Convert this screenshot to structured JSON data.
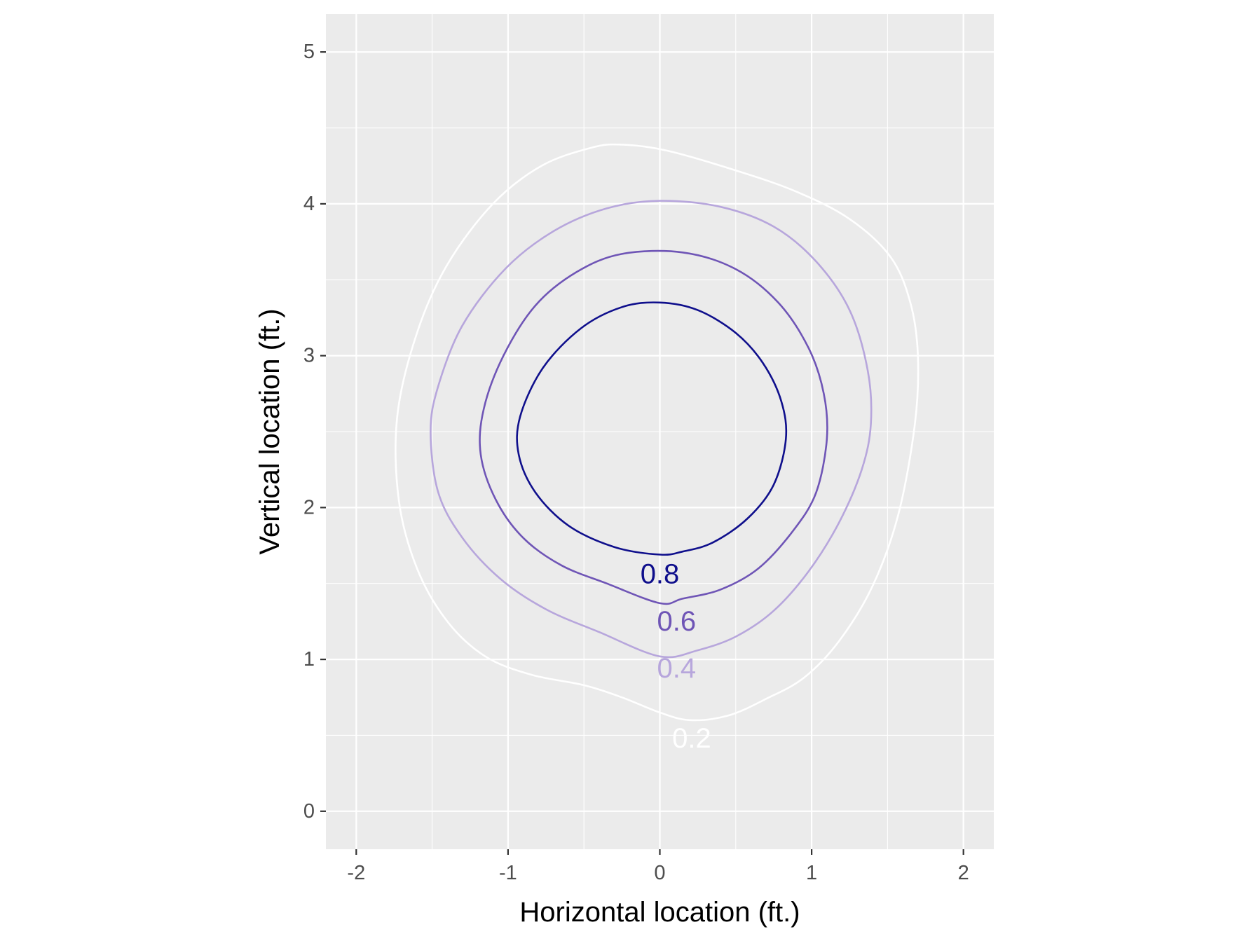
{
  "chart_data": {
    "type": "contour",
    "xlabel": "Horizontal location (ft.)",
    "ylabel": "Vertical location (ft.)",
    "xlim": [
      -2.2,
      2.2
    ],
    "ylim": [
      -0.25,
      5.25
    ],
    "x_ticks": [
      "-2",
      "-1",
      "0",
      "1",
      "2"
    ],
    "y_ticks": [
      "0",
      "1",
      "2",
      "3",
      "4",
      "5"
    ],
    "x_tick_values": [
      -2,
      -1,
      0,
      1,
      2
    ],
    "y_tick_values": [
      0,
      1,
      2,
      3,
      4,
      5
    ],
    "grid": true,
    "aspect": "equal",
    "colors": {
      "panel": "#ebebeb",
      "grid": "#ffffff"
    },
    "contours": [
      {
        "level": "0.2",
        "color": "#ffffff",
        "label_at": [
          0.21,
          0.48
        ],
        "points": [
          [
            0.0,
            0.65
          ],
          [
            0.2,
            0.6
          ],
          [
            0.45,
            0.63
          ],
          [
            0.7,
            0.74
          ],
          [
            0.95,
            0.88
          ],
          [
            1.18,
            1.12
          ],
          [
            1.4,
            1.48
          ],
          [
            1.57,
            1.95
          ],
          [
            1.68,
            2.55
          ],
          [
            1.7,
            3.0
          ],
          [
            1.65,
            3.35
          ],
          [
            1.52,
            3.65
          ],
          [
            1.25,
            3.9
          ],
          [
            0.9,
            4.08
          ],
          [
            0.5,
            4.22
          ],
          [
            0.05,
            4.35
          ],
          [
            -0.25,
            4.39
          ],
          [
            -0.45,
            4.37
          ],
          [
            -0.78,
            4.25
          ],
          [
            -1.1,
            4.0
          ],
          [
            -1.4,
            3.6
          ],
          [
            -1.6,
            3.15
          ],
          [
            -1.73,
            2.6
          ],
          [
            -1.72,
            2.05
          ],
          [
            -1.6,
            1.6
          ],
          [
            -1.4,
            1.25
          ],
          [
            -1.15,
            1.02
          ],
          [
            -0.85,
            0.9
          ],
          [
            -0.5,
            0.83
          ],
          [
            -0.25,
            0.75
          ]
        ]
      },
      {
        "level": "0.4",
        "color": "#b7a6dc",
        "label_at": [
          0.11,
          0.94
        ],
        "points": [
          [
            0.0,
            1.02
          ],
          [
            0.25,
            1.06
          ],
          [
            0.5,
            1.15
          ],
          [
            0.75,
            1.32
          ],
          [
            0.98,
            1.58
          ],
          [
            1.18,
            1.9
          ],
          [
            1.33,
            2.25
          ],
          [
            1.39,
            2.55
          ],
          [
            1.37,
            2.9
          ],
          [
            1.25,
            3.3
          ],
          [
            1.03,
            3.62
          ],
          [
            0.75,
            3.85
          ],
          [
            0.4,
            3.98
          ],
          [
            0.0,
            4.02
          ],
          [
            -0.35,
            3.97
          ],
          [
            -0.7,
            3.82
          ],
          [
            -1.02,
            3.57
          ],
          [
            -1.3,
            3.2
          ],
          [
            -1.46,
            2.8
          ],
          [
            -1.51,
            2.5
          ],
          [
            -1.46,
            2.1
          ],
          [
            -1.3,
            1.8
          ],
          [
            -1.05,
            1.53
          ],
          [
            -0.75,
            1.33
          ],
          [
            -0.4,
            1.18
          ]
        ]
      },
      {
        "level": "0.6",
        "color": "#6f55b6",
        "label_at": [
          0.11,
          1.25
        ],
        "points": [
          [
            0.0,
            1.37
          ],
          [
            0.15,
            1.4
          ],
          [
            0.4,
            1.46
          ],
          [
            0.65,
            1.6
          ],
          [
            0.88,
            1.85
          ],
          [
            1.03,
            2.1
          ],
          [
            1.1,
            2.45
          ],
          [
            1.08,
            2.75
          ],
          [
            0.98,
            3.05
          ],
          [
            0.78,
            3.35
          ],
          [
            0.5,
            3.57
          ],
          [
            0.15,
            3.68
          ],
          [
            -0.25,
            3.67
          ],
          [
            -0.55,
            3.55
          ],
          [
            -0.82,
            3.33
          ],
          [
            -1.03,
            3.0
          ],
          [
            -1.16,
            2.65
          ],
          [
            -1.18,
            2.35
          ],
          [
            -1.08,
            2.05
          ],
          [
            -0.9,
            1.8
          ],
          [
            -0.65,
            1.62
          ],
          [
            -0.35,
            1.5
          ]
        ]
      },
      {
        "level": "0.8",
        "color": "#0f0f8c",
        "label_at": [
          0.0,
          1.56
        ],
        "points": [
          [
            0.0,
            1.69
          ],
          [
            0.15,
            1.71
          ],
          [
            0.35,
            1.77
          ],
          [
            0.58,
            1.93
          ],
          [
            0.75,
            2.15
          ],
          [
            0.83,
            2.45
          ],
          [
            0.8,
            2.7
          ],
          [
            0.68,
            2.95
          ],
          [
            0.5,
            3.15
          ],
          [
            0.25,
            3.3
          ],
          [
            0.0,
            3.35
          ],
          [
            -0.25,
            3.32
          ],
          [
            -0.52,
            3.18
          ],
          [
            -0.77,
            2.92
          ],
          [
            -0.92,
            2.6
          ],
          [
            -0.93,
            2.35
          ],
          [
            -0.82,
            2.1
          ],
          [
            -0.6,
            1.88
          ],
          [
            -0.3,
            1.74
          ]
        ]
      }
    ]
  }
}
